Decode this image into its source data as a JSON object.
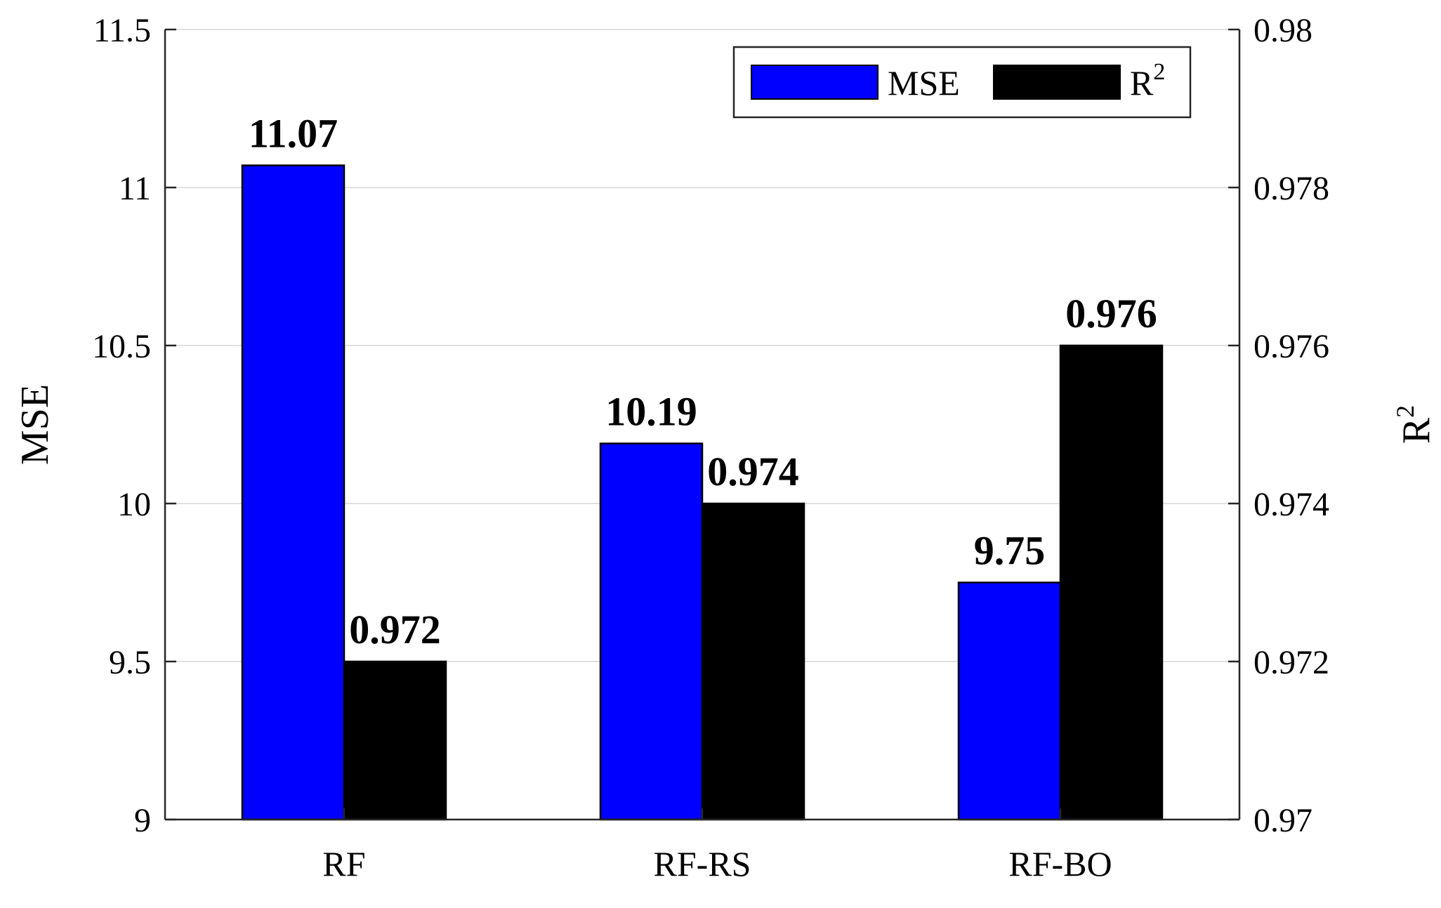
{
  "chart_data": {
    "type": "bar",
    "categories": [
      "RF",
      "RF-RS",
      "RF-BO"
    ],
    "series": [
      {
        "name": "MSE",
        "axis": "left",
        "color": "#0000ff",
        "values": [
          11.07,
          10.19,
          9.75
        ],
        "value_labels": [
          "11.07",
          "10.19",
          "9.75"
        ]
      },
      {
        "name": "R",
        "name_superscript": "2",
        "axis": "right",
        "color": "#000000",
        "values": [
          0.972,
          0.974,
          0.976
        ],
        "value_labels": [
          "0.972",
          "0.974",
          "0.976"
        ]
      }
    ],
    "ylabel_left": "MSE",
    "ylabel_right": "R",
    "ylabel_right_superscript": "2",
    "ylim_left": [
      9,
      11.5
    ],
    "ylim_right": [
      0.97,
      0.98
    ],
    "yticks_left": [
      9,
      9.5,
      10,
      10.5,
      11,
      11.5
    ],
    "yticks_left_labels": [
      "9",
      "9.5",
      "10",
      "10.5",
      "11",
      "11.5"
    ],
    "yticks_right": [
      0.97,
      0.972,
      0.974,
      0.976,
      0.978,
      0.98
    ],
    "yticks_right_labels": [
      "0.97",
      "0.972",
      "0.974",
      "0.976",
      "0.978",
      "0.98"
    ],
    "grid": true,
    "legend_position": "top-right"
  }
}
